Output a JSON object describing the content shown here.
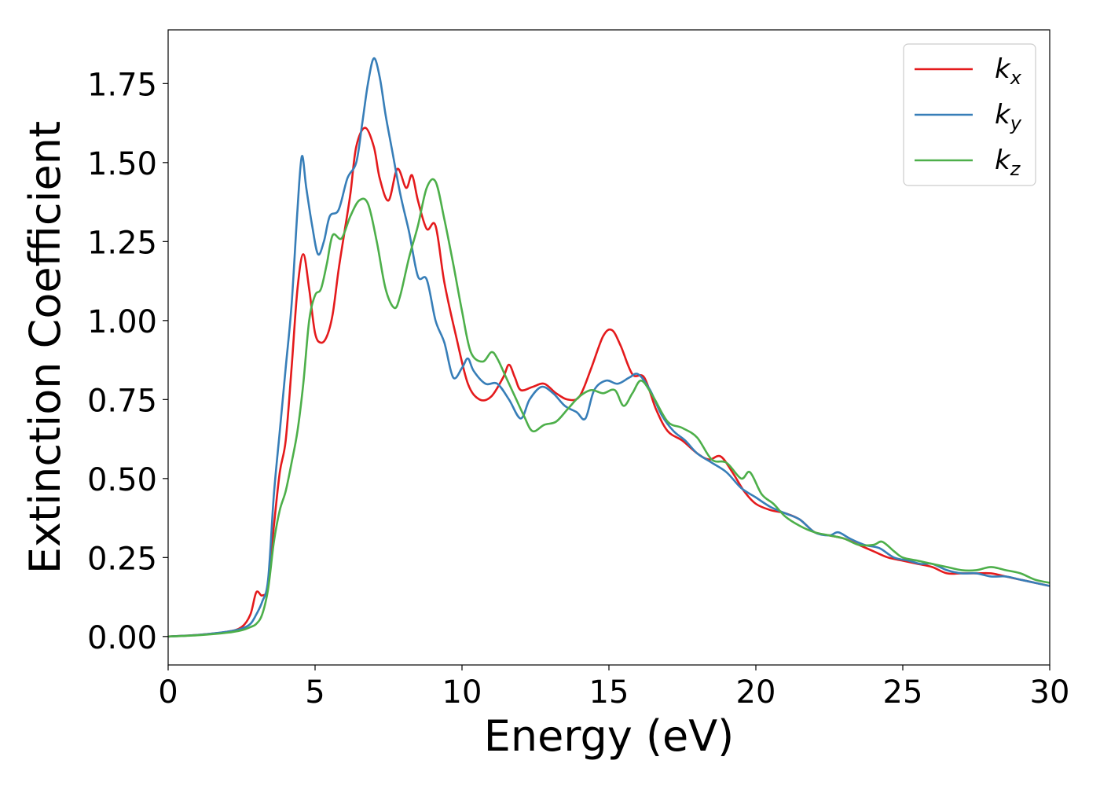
{
  "chart_data": {
    "type": "line",
    "title": "",
    "xlabel": "Energy (eV)",
    "ylabel": "Extinction Coefficient",
    "xlim": [
      0,
      30
    ],
    "ylim": [
      -0.09,
      1.92
    ],
    "xticks": [
      0,
      5,
      10,
      15,
      20,
      25,
      30
    ],
    "yticks": [
      0.0,
      0.25,
      0.5,
      0.75,
      1.0,
      1.25,
      1.5,
      1.75
    ],
    "ytick_labels": [
      "0.00",
      "0.25",
      "0.50",
      "0.75",
      "1.00",
      "1.25",
      "1.50",
      "1.75"
    ],
    "grid": false,
    "legend_position": "top-right",
    "series": [
      {
        "name": "k",
        "subscript": "x",
        "color": "#e41a1c",
        "x": [
          0,
          1,
          2,
          2.5,
          2.8,
          3.0,
          3.2,
          3.4,
          3.6,
          3.8,
          4.0,
          4.2,
          4.4,
          4.6,
          4.8,
          5.0,
          5.2,
          5.4,
          5.6,
          5.8,
          6.0,
          6.2,
          6.4,
          6.7,
          7.0,
          7.2,
          7.5,
          7.8,
          8.1,
          8.3,
          8.5,
          8.8,
          9.1,
          9.4,
          9.8,
          10.2,
          10.6,
          11.0,
          11.4,
          11.6,
          11.8,
          12.0,
          12.4,
          12.8,
          13.2,
          13.6,
          14.0,
          14.4,
          14.8,
          15.1,
          15.4,
          15.8,
          16.2,
          16.6,
          17.0,
          17.5,
          18.0,
          18.4,
          18.8,
          19.2,
          19.6,
          20.0,
          20.5,
          21.0,
          21.5,
          22.0,
          22.5,
          23.0,
          23.5,
          24.0,
          24.5,
          25.0,
          25.5,
          26.0,
          26.5,
          27.0,
          27.5,
          28.0,
          28.5,
          29.0,
          29.5,
          30.0
        ],
        "y": [
          0.0,
          0.005,
          0.015,
          0.03,
          0.07,
          0.14,
          0.13,
          0.16,
          0.35,
          0.52,
          0.62,
          0.85,
          1.1,
          1.21,
          1.1,
          0.96,
          0.93,
          0.95,
          1.02,
          1.16,
          1.28,
          1.4,
          1.55,
          1.61,
          1.55,
          1.45,
          1.38,
          1.48,
          1.42,
          1.46,
          1.38,
          1.29,
          1.3,
          1.12,
          0.95,
          0.8,
          0.75,
          0.76,
          0.82,
          0.86,
          0.82,
          0.78,
          0.79,
          0.8,
          0.77,
          0.75,
          0.76,
          0.85,
          0.95,
          0.97,
          0.92,
          0.83,
          0.82,
          0.72,
          0.65,
          0.62,
          0.58,
          0.56,
          0.57,
          0.52,
          0.46,
          0.42,
          0.4,
          0.39,
          0.37,
          0.33,
          0.32,
          0.31,
          0.29,
          0.27,
          0.25,
          0.24,
          0.23,
          0.22,
          0.2,
          0.2,
          0.2,
          0.2,
          0.19,
          0.18,
          0.17,
          0.16
        ]
      },
      {
        "name": "k",
        "subscript": "y",
        "color": "#377eb8",
        "x": [
          0,
          1,
          2,
          2.5,
          2.8,
          3.0,
          3.2,
          3.4,
          3.6,
          3.8,
          4.0,
          4.2,
          4.4,
          4.55,
          4.7,
          4.9,
          5.1,
          5.3,
          5.5,
          5.8,
          6.1,
          6.4,
          6.6,
          6.8,
          7.0,
          7.2,
          7.4,
          7.6,
          7.9,
          8.2,
          8.5,
          8.8,
          9.1,
          9.4,
          9.7,
          10.0,
          10.2,
          10.4,
          10.8,
          11.2,
          11.6,
          12.0,
          12.3,
          12.7,
          13.1,
          13.5,
          13.9,
          14.2,
          14.5,
          14.9,
          15.3,
          15.7,
          16.0,
          16.4,
          16.8,
          17.2,
          17.6,
          18.0,
          18.5,
          19.0,
          19.5,
          20.0,
          20.5,
          21.0,
          21.5,
          22.0,
          22.5,
          22.8,
          23.2,
          23.7,
          24.2,
          24.7,
          25.2,
          25.6,
          26.0,
          26.5,
          27.0,
          27.5,
          28.0,
          28.5,
          29.0,
          29.5,
          30.0
        ],
        "y": [
          0.0,
          0.005,
          0.015,
          0.025,
          0.04,
          0.07,
          0.11,
          0.18,
          0.45,
          0.65,
          0.85,
          1.05,
          1.35,
          1.52,
          1.42,
          1.3,
          1.21,
          1.25,
          1.33,
          1.35,
          1.45,
          1.5,
          1.62,
          1.75,
          1.83,
          1.77,
          1.65,
          1.55,
          1.4,
          1.28,
          1.14,
          1.13,
          1.0,
          0.93,
          0.82,
          0.85,
          0.88,
          0.84,
          0.8,
          0.8,
          0.75,
          0.69,
          0.75,
          0.79,
          0.77,
          0.73,
          0.71,
          0.69,
          0.78,
          0.81,
          0.8,
          0.82,
          0.83,
          0.78,
          0.7,
          0.65,
          0.62,
          0.58,
          0.55,
          0.52,
          0.47,
          0.44,
          0.41,
          0.39,
          0.37,
          0.33,
          0.32,
          0.33,
          0.31,
          0.29,
          0.28,
          0.25,
          0.24,
          0.23,
          0.23,
          0.21,
          0.2,
          0.2,
          0.19,
          0.19,
          0.18,
          0.17,
          0.16
        ]
      },
      {
        "name": "k",
        "subscript": "z",
        "color": "#4daf4a",
        "x": [
          0,
          1,
          2,
          2.5,
          2.8,
          3.0,
          3.2,
          3.4,
          3.6,
          3.8,
          4.0,
          4.2,
          4.4,
          4.6,
          4.8,
          5.0,
          5.2,
          5.4,
          5.6,
          5.9,
          6.2,
          6.5,
          6.8,
          7.1,
          7.4,
          7.7,
          7.9,
          8.2,
          8.5,
          8.8,
          9.1,
          9.4,
          9.7,
          10.0,
          10.3,
          10.7,
          11.0,
          11.2,
          11.5,
          11.8,
          12.1,
          12.4,
          12.8,
          13.2,
          13.6,
          14.0,
          14.4,
          14.8,
          15.2,
          15.5,
          15.8,
          16.1,
          16.5,
          17.0,
          17.5,
          18.0,
          18.5,
          19.0,
          19.5,
          19.8,
          20.2,
          20.6,
          21.0,
          21.5,
          22.0,
          22.5,
          23.0,
          23.5,
          24.0,
          24.3,
          24.7,
          25.0,
          25.5,
          26.0,
          26.5,
          27.0,
          27.5,
          28.0,
          28.5,
          29.0,
          29.5,
          30.0
        ],
        "y": [
          0.0,
          0.004,
          0.012,
          0.02,
          0.03,
          0.04,
          0.07,
          0.15,
          0.3,
          0.4,
          0.46,
          0.55,
          0.65,
          0.8,
          1.0,
          1.08,
          1.1,
          1.18,
          1.27,
          1.26,
          1.33,
          1.38,
          1.37,
          1.25,
          1.1,
          1.04,
          1.08,
          1.2,
          1.3,
          1.42,
          1.44,
          1.32,
          1.18,
          1.03,
          0.9,
          0.87,
          0.9,
          0.88,
          0.82,
          0.76,
          0.7,
          0.65,
          0.67,
          0.68,
          0.72,
          0.76,
          0.78,
          0.77,
          0.78,
          0.73,
          0.77,
          0.81,
          0.76,
          0.68,
          0.66,
          0.63,
          0.56,
          0.55,
          0.5,
          0.52,
          0.45,
          0.42,
          0.38,
          0.35,
          0.33,
          0.32,
          0.31,
          0.29,
          0.29,
          0.3,
          0.27,
          0.25,
          0.24,
          0.23,
          0.22,
          0.21,
          0.21,
          0.22,
          0.21,
          0.2,
          0.18,
          0.17
        ]
      }
    ]
  }
}
